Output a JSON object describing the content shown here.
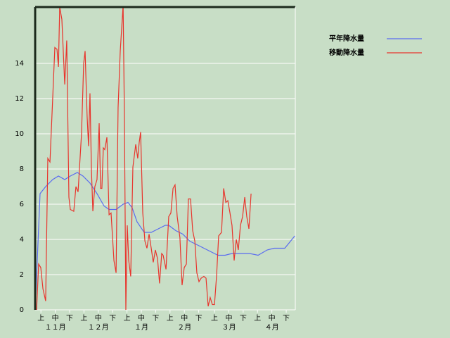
{
  "chart_data": {
    "type": "line",
    "xlim": [
      0,
      182
    ],
    "ylim": [
      0,
      17.2
    ],
    "yticks": [
      0,
      2,
      4,
      6,
      8,
      10,
      12,
      14
    ],
    "xticks": [
      {
        "value": 5,
        "label": "上"
      },
      {
        "value": 15,
        "label": "中"
      },
      {
        "value": 25,
        "label": "下"
      },
      {
        "value": 35,
        "label": "上"
      },
      {
        "value": 45,
        "label": "中"
      },
      {
        "value": 55,
        "label": "下"
      },
      {
        "value": 65,
        "label": "上"
      },
      {
        "value": 75,
        "label": "中"
      },
      {
        "value": 85,
        "label": "下"
      },
      {
        "value": 95,
        "label": "上"
      },
      {
        "value": 105,
        "label": "中"
      },
      {
        "value": 115,
        "label": "下"
      },
      {
        "value": 126,
        "label": "上"
      },
      {
        "value": 136,
        "label": "中"
      },
      {
        "value": 146,
        "label": "下"
      },
      {
        "value": 156,
        "label": "上"
      },
      {
        "value": 166,
        "label": "中"
      },
      {
        "value": 176,
        "label": "下"
      }
    ],
    "month_labels": [
      {
        "value": 15,
        "label": "１１月"
      },
      {
        "value": 45,
        "label": "１２月"
      },
      {
        "value": 75,
        "label": "１月"
      },
      {
        "value": 105,
        "label": "２月"
      },
      {
        "value": 136,
        "label": "３月"
      },
      {
        "value": 166,
        "label": "４月"
      }
    ],
    "grid": true,
    "series": [
      {
        "name": "平年降水量",
        "color": "#5a6cf0",
        "x": [
          1,
          4.4,
          8.3,
          13.2,
          17.2,
          21.6,
          25.5,
          30.4,
          34.3,
          39.2,
          44.1,
          49,
          52.5,
          57.4,
          62.3,
          65.7,
          68.6,
          72,
          77,
          81.9,
          86.8,
          91.7,
          94.1,
          99,
          103.9,
          108.8,
          116.2,
          123.5,
          128.4,
          133.3,
          138.2,
          150.5,
          156.4,
          162.7,
          167.6,
          175,
          182
        ],
        "values": [
          0,
          6.6,
          7.0,
          7.4,
          7.6,
          7.4,
          7.6,
          7.8,
          7.6,
          7.2,
          6.6,
          5.9,
          5.7,
          5.7,
          6.0,
          6.1,
          5.8,
          5.0,
          4.4,
          4.4,
          4.6,
          4.8,
          4.8,
          4.5,
          4.3,
          3.9,
          3.6,
          3.3,
          3.1,
          3.1,
          3.2,
          3.2,
          3.1,
          3.4,
          3.5,
          3.5,
          4.2
        ]
      },
      {
        "name": "移動降水量",
        "color": "#e8342c",
        "x": [
          2.0,
          3.4,
          4.9,
          6.4,
          8.3,
          9.8,
          11.3,
          13.2,
          14.7,
          16.2,
          17.2,
          18.1,
          19.6,
          21.6,
          23.0,
          24.5,
          25.5,
          27.9,
          29.4,
          30.9,
          33.3,
          34.8,
          35.8,
          37.2,
          38.2,
          39.2,
          40.2,
          41.2,
          42.6,
          44.1,
          45.6,
          46.6,
          47.5,
          48.5,
          49.5,
          51.0,
          52.5,
          53.9,
          55.9,
          57.4,
          58.8,
          60.3,
          62.3,
          63.2,
          64.2,
          65.2,
          66.2,
          67.6,
          69.1,
          71.1,
          72.5,
          73.5,
          74.5,
          76.0,
          77.5,
          78.9,
          80.4,
          81.9,
          83.3,
          84.8,
          86.3,
          87.7,
          89.2,
          90.2,
          92.2,
          94.1,
          95.6,
          97.1,
          98.5,
          100.0,
          101.9,
          103.4,
          104.9,
          106.4,
          107.8,
          109.3,
          110.8,
          112.3,
          113.7,
          115.2,
          116.7,
          118.6,
          120.1,
          121.6,
          123.0,
          124.5,
          126.0,
          127.5,
          128.9,
          130.9,
          132.4,
          133.9,
          135.3,
          136.8,
          138.2,
          139.7,
          141.2,
          142.6,
          144.1,
          145.6,
          147.1,
          148.5,
          150.0,
          151.5
        ],
        "values": [
          0,
          2.6,
          2.4,
          1.2,
          0.5,
          8.6,
          8.4,
          12,
          14.9,
          14.8,
          13.8,
          17.2,
          16.5,
          12.8,
          15.3,
          6.4,
          5.7,
          5.6,
          7,
          6.7,
          10,
          14,
          14.7,
          11,
          9.3,
          12.3,
          8,
          5.6,
          7,
          7.4,
          10.6,
          6.9,
          6.9,
          9.2,
          9.1,
          9.8,
          5.4,
          5.5,
          2.8,
          2.1,
          11.5,
          14.7,
          17.3,
          11,
          0,
          4.8,
          2.8,
          1.9,
          8.1,
          9.4,
          8.6,
          9.5,
          10.1,
          5.5,
          3.9,
          3.5,
          4.3,
          3.5,
          2.7,
          3.4,
          2.9,
          1.5,
          3.2,
          3.1,
          2.3,
          5.3,
          5.5,
          6.9,
          7.1,
          5.3,
          4.1,
          1.4,
          2.4,
          2.6,
          6.3,
          6.3,
          4.5,
          3.9,
          2.1,
          1.6,
          1.8,
          1.9,
          1.8,
          0.2,
          0.7,
          0.3,
          0.3,
          2,
          4.2,
          4.4,
          6.9,
          6.1,
          6.2,
          5.5,
          4.8,
          2.8,
          4,
          3.4,
          4.8,
          5.3,
          6.4,
          5.3,
          4.6,
          6.6
        ]
      }
    ]
  }
}
